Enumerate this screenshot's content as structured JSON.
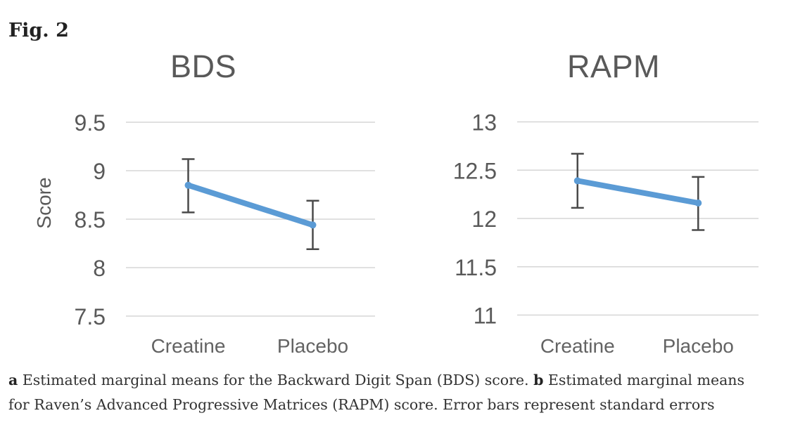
{
  "figure_label": "Fig. 2",
  "chart_data": [
    {
      "type": "line",
      "title": "BDS",
      "ylabel": "Score",
      "xlabel": "",
      "categories": [
        "Creatine",
        "Placebo"
      ],
      "values": [
        8.85,
        8.44
      ],
      "error_upper": [
        9.12,
        8.69
      ],
      "error_lower": [
        8.57,
        8.19
      ],
      "ylim": [
        7.5,
        9.5
      ],
      "yticks": [
        9.5,
        9,
        8.5,
        8,
        7.5
      ],
      "grid": "horizontal",
      "legend": "none",
      "error_bars": "standard errors"
    },
    {
      "type": "line",
      "title": "RAPM",
      "ylabel": "",
      "xlabel": "",
      "categories": [
        "Creatine",
        "Placebo"
      ],
      "values": [
        12.39,
        12.16
      ],
      "error_upper": [
        12.67,
        12.43
      ],
      "error_lower": [
        12.11,
        11.88
      ],
      "ylim": [
        11,
        13
      ],
      "yticks": [
        13,
        12.5,
        12,
        11.5,
        11
      ],
      "grid": "horizontal",
      "legend": "none",
      "error_bars": "standard errors"
    }
  ],
  "caption": {
    "a_marker": "a",
    "a_text": " Estimated marginal means for the Backward Digit Span (BDS) score. ",
    "b_marker": "b",
    "b_text_line1": " Estimated marginal means",
    "line2": "for Raven’s Advanced Progressive Matrices (RAPM) score. Error bars represent standard errors"
  },
  "colors": {
    "series_line": "#5b9bd5",
    "error_bar": "#4a4a4a",
    "gridline": "#d6d6d6",
    "axis_text": "#595959",
    "title_text": "#595959"
  }
}
